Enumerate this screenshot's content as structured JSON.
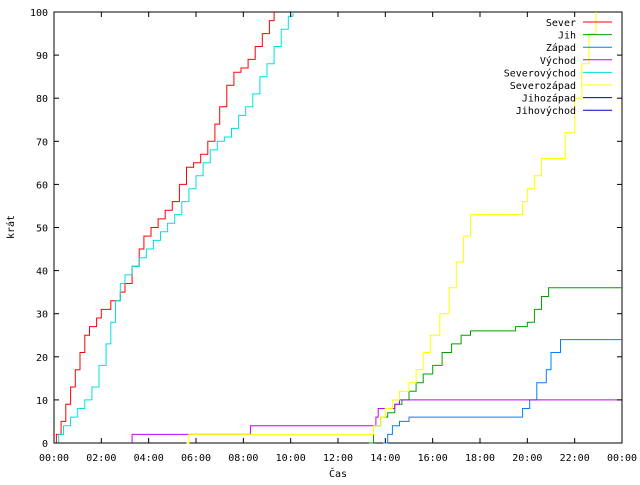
{
  "chart_data": {
    "type": "line",
    "xlabel": "Čas",
    "ylabel": "krát",
    "xlim": [
      0,
      24
    ],
    "ylim": [
      0,
      100
    ],
    "grid": false,
    "legend_position": "top-right",
    "x_ticks": [
      {
        "value": 0,
        "label": "00:00"
      },
      {
        "value": 2,
        "label": "02:00"
      },
      {
        "value": 4,
        "label": "04:00"
      },
      {
        "value": 6,
        "label": "06:00"
      },
      {
        "value": 8,
        "label": "08:00"
      },
      {
        "value": 10,
        "label": "10:00"
      },
      {
        "value": 12,
        "label": "12:00"
      },
      {
        "value": 14,
        "label": "14:00"
      },
      {
        "value": 16,
        "label": "16:00"
      },
      {
        "value": 18,
        "label": "18:00"
      },
      {
        "value": 20,
        "label": "20:00"
      },
      {
        "value": 22,
        "label": "22:00"
      },
      {
        "value": 24,
        "label": "00:00"
      }
    ],
    "y_ticks": [
      {
        "value": 0,
        "label": "0"
      },
      {
        "value": 10,
        "label": "10"
      },
      {
        "value": 20,
        "label": "20"
      },
      {
        "value": 30,
        "label": "30"
      },
      {
        "value": 40,
        "label": "40"
      },
      {
        "value": 50,
        "label": "50"
      },
      {
        "value": 60,
        "label": "60"
      },
      {
        "value": 70,
        "label": "70"
      },
      {
        "value": 80,
        "label": "80"
      },
      {
        "value": 90,
        "label": "90"
      },
      {
        "value": 100,
        "label": "100"
      }
    ],
    "series": [
      {
        "name": "Sever",
        "color": "#ff0000",
        "points": [
          [
            0.0,
            0
          ],
          [
            0.1,
            2
          ],
          [
            0.3,
            5
          ],
          [
            0.5,
            9
          ],
          [
            0.7,
            13
          ],
          [
            0.9,
            17
          ],
          [
            1.1,
            21
          ],
          [
            1.3,
            25
          ],
          [
            1.5,
            27
          ],
          [
            1.8,
            29
          ],
          [
            2.0,
            31
          ],
          [
            2.4,
            33
          ],
          [
            2.8,
            35
          ],
          [
            3.0,
            37
          ],
          [
            3.3,
            41
          ],
          [
            3.6,
            45
          ],
          [
            3.8,
            48
          ],
          [
            4.1,
            50
          ],
          [
            4.4,
            52
          ],
          [
            4.7,
            54
          ],
          [
            5.0,
            56
          ],
          [
            5.3,
            60
          ],
          [
            5.6,
            64
          ],
          [
            5.9,
            65
          ],
          [
            6.2,
            67
          ],
          [
            6.5,
            70
          ],
          [
            6.8,
            74
          ],
          [
            7.0,
            78
          ],
          [
            7.3,
            83
          ],
          [
            7.6,
            86
          ],
          [
            7.9,
            87
          ],
          [
            8.2,
            89
          ],
          [
            8.5,
            92
          ],
          [
            8.8,
            95
          ],
          [
            9.1,
            98
          ],
          [
            9.3,
            100
          ]
        ]
      },
      {
        "name": "Jih",
        "color": "#00a000",
        "points": [
          [
            13.3,
            0
          ],
          [
            13.5,
            4
          ],
          [
            13.8,
            6
          ],
          [
            14.1,
            7
          ],
          [
            14.4,
            9
          ],
          [
            14.7,
            10
          ],
          [
            15.0,
            12
          ],
          [
            15.3,
            14
          ],
          [
            15.6,
            16
          ],
          [
            16.0,
            18
          ],
          [
            16.4,
            21
          ],
          [
            16.8,
            23
          ],
          [
            17.2,
            25
          ],
          [
            17.6,
            26
          ],
          [
            19.0,
            26
          ],
          [
            19.5,
            27
          ],
          [
            20.0,
            28
          ],
          [
            20.3,
            31
          ],
          [
            20.6,
            34
          ],
          [
            20.9,
            36
          ],
          [
            24.0,
            36
          ]
        ]
      },
      {
        "name": "Západ",
        "color": "#0080ff",
        "points": [
          [
            13.9,
            0
          ],
          [
            14.1,
            2
          ],
          [
            14.3,
            4
          ],
          [
            14.6,
            5
          ],
          [
            15.0,
            6
          ],
          [
            19.6,
            6
          ],
          [
            19.8,
            8
          ],
          [
            20.1,
            10
          ],
          [
            20.4,
            14
          ],
          [
            20.8,
            17
          ],
          [
            21.0,
            21
          ],
          [
            21.4,
            24
          ],
          [
            24.0,
            24
          ]
        ]
      },
      {
        "name": "Východ",
        "color": "#c000ff",
        "points": [
          [
            3.3,
            0
          ],
          [
            3.3,
            2
          ],
          [
            5.7,
            2
          ],
          [
            8.2,
            2
          ],
          [
            8.3,
            4
          ],
          [
            13.4,
            4
          ],
          [
            13.6,
            6
          ],
          [
            13.7,
            8
          ],
          [
            14.4,
            9
          ],
          [
            14.6,
            10
          ],
          [
            24.0,
            10
          ]
        ]
      },
      {
        "name": "Severovýchod",
        "color": "#00e0e0",
        "points": [
          [
            0.0,
            0
          ],
          [
            0.2,
            2
          ],
          [
            0.4,
            4
          ],
          [
            0.7,
            6
          ],
          [
            1.0,
            8
          ],
          [
            1.3,
            10
          ],
          [
            1.6,
            13
          ],
          [
            1.9,
            18
          ],
          [
            2.2,
            23
          ],
          [
            2.4,
            28
          ],
          [
            2.6,
            33
          ],
          [
            2.8,
            37
          ],
          [
            3.0,
            39
          ],
          [
            3.3,
            41
          ],
          [
            3.6,
            43
          ],
          [
            3.9,
            45
          ],
          [
            4.2,
            47
          ],
          [
            4.5,
            49
          ],
          [
            4.8,
            51
          ],
          [
            5.1,
            53
          ],
          [
            5.4,
            56
          ],
          [
            5.7,
            59
          ],
          [
            6.0,
            62
          ],
          [
            6.3,
            65
          ],
          [
            6.6,
            68
          ],
          [
            6.9,
            70
          ],
          [
            7.2,
            71
          ],
          [
            7.5,
            73
          ],
          [
            7.8,
            76
          ],
          [
            8.1,
            78
          ],
          [
            8.4,
            81
          ],
          [
            8.7,
            85
          ],
          [
            9.0,
            88
          ],
          [
            9.3,
            92
          ],
          [
            9.6,
            96
          ],
          [
            9.9,
            99
          ],
          [
            10.1,
            100
          ]
        ]
      },
      {
        "name": "Severozápad",
        "color": "#ffff00",
        "points": [
          [
            5.6,
            0
          ],
          [
            5.7,
            2
          ],
          [
            13.2,
            2
          ],
          [
            13.5,
            4
          ],
          [
            13.8,
            6
          ],
          [
            14.0,
            8
          ],
          [
            14.3,
            10
          ],
          [
            14.6,
            12
          ],
          [
            15.0,
            14
          ],
          [
            15.3,
            17
          ],
          [
            15.6,
            21
          ],
          [
            15.9,
            25
          ],
          [
            16.3,
            30
          ],
          [
            16.7,
            36
          ],
          [
            17.0,
            42
          ],
          [
            17.3,
            48
          ],
          [
            17.6,
            53
          ],
          [
            19.6,
            53
          ],
          [
            19.8,
            56
          ],
          [
            20.0,
            59
          ],
          [
            20.3,
            62
          ],
          [
            20.6,
            66
          ],
          [
            21.3,
            66
          ],
          [
            21.6,
            72
          ],
          [
            22.0,
            80
          ],
          [
            22.3,
            88
          ],
          [
            22.6,
            95
          ],
          [
            22.9,
            100
          ]
        ]
      },
      {
        "name": "Jihozápad",
        "color": "#0000c0",
        "points": []
      },
      {
        "name": "Jihovýchod",
        "color": "#0000c0",
        "points": []
      }
    ]
  }
}
